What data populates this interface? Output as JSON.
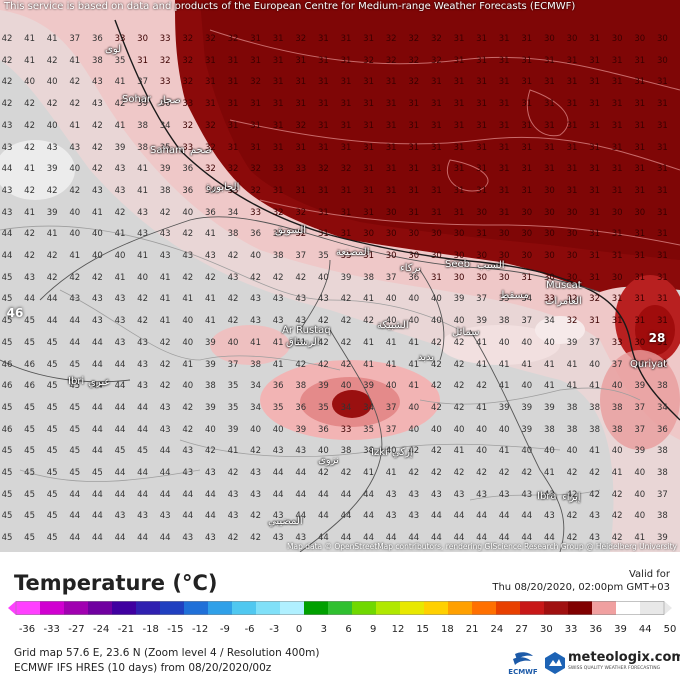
{
  "top_note": "This service is based on data and products of the European Centre for Medium-range Weather Forecasts (ECMWF)",
  "attribution": "Map data © OpenStreetMap contributors, rendering GIScience Research Group @ Heidelberg University",
  "legend": {
    "title": "Temperature (°C)",
    "valid_label": "Valid for",
    "valid_time": "Thu 08/20/2020, 02:00pm GMT+03",
    "ticks": [
      "-36",
      "-33",
      "-27",
      "-24",
      "-21",
      "-18",
      "-15",
      "-12",
      "-9",
      "-6",
      "-3",
      "0",
      "3",
      "6",
      "9",
      "12",
      "15",
      "18",
      "21",
      "24",
      "27",
      "30",
      "33",
      "36",
      "39",
      "44",
      "50"
    ],
    "colors": [
      "#ff40ff",
      "#d000d0",
      "#a000b0",
      "#7000a0",
      "#4000a0",
      "#3020b0",
      "#2040c0",
      "#2070d8",
      "#30a0e8",
      "#50c8f0",
      "#80e0f8",
      "#b0f0ff",
      "#00a000",
      "#30c030",
      "#70d800",
      "#b0e800",
      "#e8e800",
      "#ffd000",
      "#ffa000",
      "#ff7000",
      "#e84000",
      "#c81818",
      "#a01010",
      "#800000",
      "#f0a0a0",
      "#ffffff",
      "#e8e8e8"
    ]
  },
  "footer": {
    "grid": "Grid map 57.6 E, 23.6 N (Zoom level 4 / Resolution 400m)",
    "model": "ECMWF IFS HRES (10 days) from 08/20/2020/00z",
    "ecmwf": "ECMWF",
    "brand": "meteologix.com",
    "tagline": "SWISS QUALITY WEATHER FORECASTING"
  },
  "places": [
    {
      "name": "Sohar",
      "ar": "صحار"
    },
    {
      "name": "Saham",
      "ar": "صحم"
    },
    {
      "name": "Seeb",
      "ar": "السيب"
    },
    {
      "name": "Muscat",
      "ar": "مسقط"
    },
    {
      "name": "Ar Rustaq",
      "ar": "الرستاق"
    },
    {
      "name": "Ibri",
      "ar": "عبري"
    },
    {
      "name": "Izki",
      "ar": "إزكي"
    },
    {
      "name": "Quriyat",
      "ar": ""
    },
    {
      "name": "Ibra",
      "ar": "إبراء"
    },
    {
      "name": "",
      "ar": "لوى"
    },
    {
      "name": "",
      "ar": "الخابورة"
    },
    {
      "name": "",
      "ar": "السويق"
    },
    {
      "name": "",
      "ar": "المصنعة"
    },
    {
      "name": "",
      "ar": "بركاء"
    },
    {
      "name": "",
      "ar": "العامرات"
    },
    {
      "name": "",
      "ar": "الشبيكة"
    },
    {
      "name": "",
      "ar": "سمائل"
    },
    {
      "name": "",
      "ar": "بدبد"
    },
    {
      "name": "",
      "ar": "نزوى"
    },
    {
      "name": "",
      "ar": "المضيبي"
    }
  ],
  "badges": {
    "west": "46",
    "east": "28"
  },
  "temperature_rows": [
    "42 41 41 37 36 33 30 33 32 32 32 31 31 32 31 31 31 32 32 32 31 31 31 31 30 30 31 30 30 30",
    "42 41 42 41 38 35 31 32 32 31 31 31 31 31 31 31 32 32 32 32 31 31 31 31 31 31 31 31 31 30",
    "42 40 40 42 43 41 37 33 32 31 31 32 31 31 31 31 31 31 32 31 31 31 31 31 31 31 31 31 31 31",
    "42 42 42 42 43 42 39 36 33 31 31 31 31 31 31 31 31 31 31 31 31 31 31 31 31 31 31 31 31 31",
    "43 42 40 41 42 41 38 34 32 32 31 31 31 32 31 31 31 31 31 31 31 31 31 31 31 31 31 31 31 31",
    "43 42 43 43 42 39 38 35 33 32 31 31 31 31 31 31 31 31 31 31 31 31 31 31 31 31 31 31 31 31",
    "44 41 39 40 42 43 41 39 36 32 32 32 33 33 32 32 31 31 31 31 31 31 31 31 31 31 31 31 31 31",
    "43 42 42 42 43 43 41 38 36 34 33 32 31 31 31 31 31 31 31 31 31 31 31 31 30 31 31 31 31 31",
    "43 41 39 40 41 42 43 42 40 36 34 33 32 32 31 31 31 30 31 31 31 30 31 30 30 30 31 30 30 31",
    "44 42 41 40 40 41 43 43 42 41 38 36 34 32 31 31 30 30 30 30 30 31 30 30 30 30 31 31 31 31",
    "44 42 42 41 40 40 41 43 43 43 42 40 38 37 35 33 31 30 30 30 30 30 30 30 30 30 31 31 31 31",
    "45 43 42 42 42 41 40 41 42 42 43 42 42 42 40 39 38 37 36 31 30 30 30 31 30 30 31 30 31 31",
    "45 44 44 43 43 43 42 41 41 41 42 43 43 43 43 42 41 40 40 40 39 37 35 34 33 32 32 31 31 31",
    "45 45 44 44 43 43 42 41 40 41 42 43 43 43 42 42 42 40 40 40 40 39 38 37 34 32 31 31 31 31",
    "45 45 45 44 44 43 43 42 40 39 40 41 41 41 42 42 41 41 41 42 42 41 40 40 40 39 37 33 30 31",
    "46 46 45 45 44 44 43 42 41 39 37 38 41 42 42 42 41 41 41 42 42 41 41 41 41 41 40 37 35 32",
    "46 46 45 45 44 44 43 42 40 38 35 34 36 38 39 40 39 40 41 42 42 42 41 40 41 41 41 40 39 38",
    "45 45 45 45 44 44 44 43 42 39 35 34 35 36 35 34 34 37 40 42 42 41 39 39 39 38 38 38 37 34",
    "46 45 45 45 44 44 44 43 42 40 39 40 40 39 36 33 35 37 40 40 40 40 40 39 38 38 38 38 37 36",
    "45 45 45 45 44 45 45 44 43 42 41 42 43 43 40 38 38 40 42 42 41 40 41 40 40 40 41 40 39 38",
    "45 45 45 45 45 44 44 44 43 43 42 43 44 44 42 42 41 41 42 42 42 42 42 42 41 42 42 41 40 38",
    "45 45 45 44 44 44 44 44 44 44 43 43 44 44 44 44 44 43 43 43 43 43 43 43 43 42 42 42 40 37",
    "45 45 45 44 44 43 43 43 44 44 43 42 43 44 44 44 44 43 43 44 44 44 44 44 43 42 43 42 40 38",
    "45 45 45 44 44 44 44 44 43 43 42 42 43 43 44 44 44 44 44 44 44 44 44 44 44 42 43 42 41 39",
    "45 45 45 44 44 44 44 44 43 43 43 44 44 44 44 44 44 44 44 44 44 44 44 44 44 43 43 43 42 40"
  ]
}
